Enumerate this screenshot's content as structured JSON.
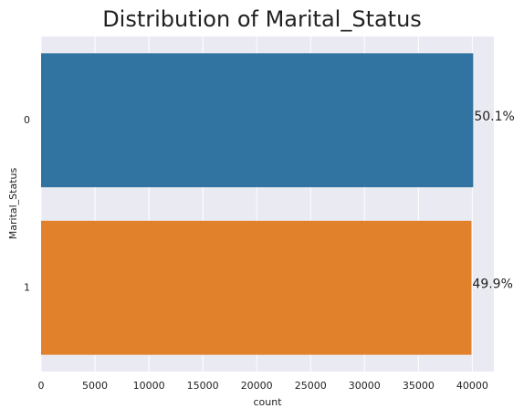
{
  "chart_data": {
    "type": "barh",
    "title": "Distribution of Marital_Status",
    "xlabel": "count",
    "ylabel": "Marital_Status",
    "categories": [
      "0",
      "1"
    ],
    "values": [
      40080,
      39920
    ],
    "value_labels": [
      "50.1%",
      "49.9%"
    ],
    "colors": [
      "#3274a1",
      "#e1812c"
    ],
    "xlim": [
      0,
      42000
    ],
    "xticks": [
      0,
      5000,
      10000,
      15000,
      20000,
      25000,
      30000,
      35000,
      40000
    ],
    "grid": true
  }
}
